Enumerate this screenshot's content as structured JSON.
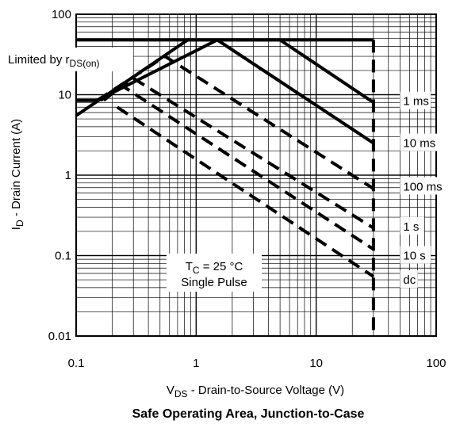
{
  "chart_data": {
    "type": "line",
    "title": "Safe Operating Area, Junction-to-Case",
    "xlabel": {
      "prefix": "V",
      "sub": "DS",
      "text": " -  Drain-to-Source Voltage (V)"
    },
    "ylabel": {
      "prefix": "I",
      "sub": "D",
      "text": " - Drain Current (A)"
    },
    "x_scale": "log",
    "y_scale": "log",
    "xlim": [
      0.1,
      100
    ],
    "ylim": [
      0.01,
      100
    ],
    "x_ticks": [
      {
        "value": 0.1,
        "label": "0.1"
      },
      {
        "value": 1,
        "label": "1"
      },
      {
        "value": 10,
        "label": "10"
      },
      {
        "value": 100,
        "label": "100"
      }
    ],
    "y_ticks": [
      {
        "value": 100,
        "label": "100"
      },
      {
        "value": 10,
        "label": "10"
      },
      {
        "value": 1,
        "label": "1"
      },
      {
        "value": 0.1,
        "label": "0.1"
      },
      {
        "value": 0.01,
        "label": "0.01"
      }
    ],
    "grid": true,
    "annotations": {
      "limited": {
        "prefix": "Limited by r",
        "sub": "DS(on)"
      },
      "conditions": {
        "line1_prefix": "T",
        "line1_sub": "C",
        "line1_suffix": " = 25 °C",
        "line2": "Single Pulse"
      }
    },
    "series": [
      {
        "name": "1 ms",
        "style": "solid",
        "points": [
          [
            0.1,
            8.5
          ],
          [
            0.15,
            8.5
          ],
          [
            1.5,
            48
          ],
          [
            5,
            48
          ],
          [
            30,
            8
          ]
        ],
        "label_at": [
          38,
          8.3
        ]
      },
      {
        "name": "10 ms",
        "style": "solid",
        "points": [
          [
            0.1,
            5.5
          ],
          [
            0.85,
            48
          ],
          [
            1.5,
            48
          ],
          [
            30,
            2.5
          ]
        ],
        "label_at": [
          38,
          2.5
        ]
      },
      {
        "name": "100 ms",
        "style": "dashed",
        "points": [
          [
            0.15,
            8.5
          ],
          [
            0.55,
            30
          ],
          [
            30,
            0.68
          ]
        ],
        "label_at": [
          38,
          0.72
        ]
      },
      {
        "name": "1 s",
        "style": "dashed",
        "points": [
          [
            0.16,
            8.5
          ],
          [
            0.3,
            16
          ],
          [
            30,
            0.22
          ]
        ],
        "label_at": [
          38,
          0.23
        ]
      },
      {
        "name": "10 s",
        "style": "dashed",
        "points": [
          [
            0.17,
            8.5
          ],
          [
            0.24,
            13
          ],
          [
            30,
            0.12
          ]
        ],
        "label_at": [
          38,
          0.1
        ]
      },
      {
        "name": "dc",
        "style": "dashed",
        "points": [
          [
            0.22,
            7
          ],
          [
            30,
            0.055
          ]
        ],
        "label_at": [
          38,
          0.05
        ]
      }
    ],
    "limit_lines": [
      {
        "name": "current-limit",
        "style": "solid",
        "points": [
          [
            0.1,
            48
          ],
          [
            30,
            48
          ]
        ]
      },
      {
        "name": "voltage-limit",
        "style": "dashed",
        "points": [
          [
            30,
            48
          ],
          [
            30,
            0.01
          ]
        ]
      }
    ]
  }
}
